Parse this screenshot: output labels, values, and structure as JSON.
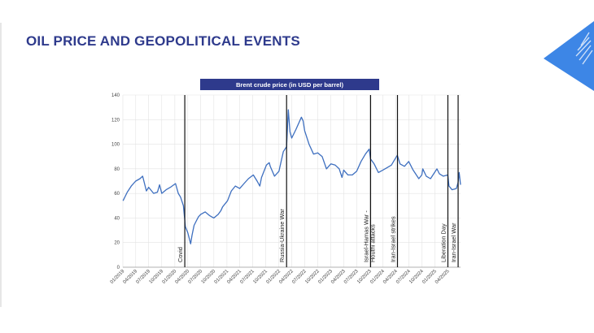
{
  "slide": {
    "title": "OIL PRICE AND GEOPOLITICAL EVENTS"
  },
  "colors": {
    "title": "#2e3a8c",
    "chart_title_bg": "#2e3a8c",
    "series": "#3e6fbf",
    "event_line": "#111111",
    "grid": "#e3e3e3",
    "corner_deco": "#3d86e6"
  },
  "chart_data": {
    "type": "line",
    "title": "Brent crude price (in USD per barrel)",
    "xlabel": "",
    "ylabel": "",
    "ylim": [
      0,
      140
    ],
    "y_ticks": [
      0,
      20,
      40,
      60,
      80,
      100,
      120,
      140
    ],
    "x_range": [
      "2019-01-01",
      "2025-06-30"
    ],
    "x_tick_labels": [
      "01/2019",
      "04/2019",
      "07/2019",
      "10/2019",
      "01/2020",
      "04/2020",
      "07/2020",
      "10/2020",
      "01/2021",
      "04/2021",
      "07/2021",
      "10/2021",
      "01/2022",
      "04/2022",
      "07/2022",
      "10/2022",
      "01/2023",
      "04/2023",
      "07/2023",
      "10/2023",
      "01/2024",
      "04/2024",
      "07/2024",
      "10/2024",
      "01/2025",
      "04/2025"
    ],
    "grid": true,
    "legend": "none",
    "series": [
      {
        "name": "Brent crude price (in USD per barrel)",
        "x": [
          "2019-01-02",
          "2019-02-01",
          "2019-03-01",
          "2019-04-01",
          "2019-05-01",
          "2019-05-20",
          "2019-06-15",
          "2019-07-01",
          "2019-08-05",
          "2019-09-01",
          "2019-09-16",
          "2019-10-01",
          "2019-11-01",
          "2019-12-01",
          "2020-01-06",
          "2020-01-25",
          "2020-02-10",
          "2020-03-01",
          "2020-03-15",
          "2020-04-01",
          "2020-04-21",
          "2020-05-01",
          "2020-05-15",
          "2020-06-01",
          "2020-06-15",
          "2020-07-01",
          "2020-08-01",
          "2020-09-01",
          "2020-10-01",
          "2020-11-01",
          "2020-11-20",
          "2020-12-01",
          "2021-01-05",
          "2021-02-01",
          "2021-03-01",
          "2021-04-01",
          "2021-05-01",
          "2021-06-01",
          "2021-07-05",
          "2021-08-01",
          "2021-08-20",
          "2021-09-01",
          "2021-10-05",
          "2021-10-25",
          "2021-11-01",
          "2021-12-01",
          "2022-01-01",
          "2022-02-01",
          "2022-02-24",
          "2022-03-08",
          "2022-03-20",
          "2022-04-01",
          "2022-05-01",
          "2022-06-08",
          "2022-06-20",
          "2022-07-01",
          "2022-08-01",
          "2022-09-01",
          "2022-10-01",
          "2022-11-01",
          "2022-12-01",
          "2023-01-01",
          "2023-02-01",
          "2023-03-01",
          "2023-03-20",
          "2023-04-01",
          "2023-05-01",
          "2023-06-01",
          "2023-07-01",
          "2023-08-01",
          "2023-09-01",
          "2023-09-27",
          "2023-10-07",
          "2023-11-01",
          "2023-12-01",
          "2024-01-01",
          "2024-02-01",
          "2024-03-01",
          "2024-04-01",
          "2024-04-12",
          "2024-05-01",
          "2024-06-01",
          "2024-07-01",
          "2024-08-01",
          "2024-09-10",
          "2024-10-01",
          "2024-10-08",
          "2024-11-01",
          "2024-12-01",
          "2025-01-15",
          "2025-02-01",
          "2025-03-01",
          "2025-04-02",
          "2025-04-10",
          "2025-05-01",
          "2025-06-01",
          "2025-06-13",
          "2025-06-20",
          "2025-06-30"
        ],
        "y": [
          54,
          61,
          66,
          70,
          72,
          74,
          62,
          65,
          60,
          61,
          67,
          60,
          63,
          65,
          68,
          60,
          57,
          50,
          33,
          28,
          19,
          26,
          34,
          38,
          41,
          43,
          45,
          42,
          40,
          43,
          46,
          49,
          54,
          62,
          66,
          64,
          68,
          72,
          75,
          70,
          66,
          73,
          83,
          85,
          82,
          74,
          78,
          94,
          98,
          128,
          110,
          105,
          112,
          122,
          119,
          111,
          100,
          92,
          93,
          90,
          80,
          84,
          83,
          80,
          73,
          79,
          75,
          75,
          78,
          86,
          92,
          96,
          88,
          84,
          77,
          79,
          81,
          83,
          89,
          91,
          84,
          82,
          86,
          79,
          72,
          75,
          80,
          74,
          72,
          80,
          76,
          74,
          75,
          66,
          63,
          64,
          69,
          77,
          67
        ]
      }
    ],
    "events": [
      {
        "label": "Covid",
        "date": "2020-03-11"
      },
      {
        "label": "Russia-Ukraine War",
        "date": "2022-02-24"
      },
      {
        "label": "Israel-Hamas War - Houthi attacks",
        "date": "2023-10-07"
      },
      {
        "label": "Iran-Israel strikes",
        "date": "2024-04-13"
      },
      {
        "label": "Liberation Day",
        "date": "2025-04-02"
      },
      {
        "label": "Iran-Israel War",
        "date": "2025-06-13"
      }
    ]
  }
}
